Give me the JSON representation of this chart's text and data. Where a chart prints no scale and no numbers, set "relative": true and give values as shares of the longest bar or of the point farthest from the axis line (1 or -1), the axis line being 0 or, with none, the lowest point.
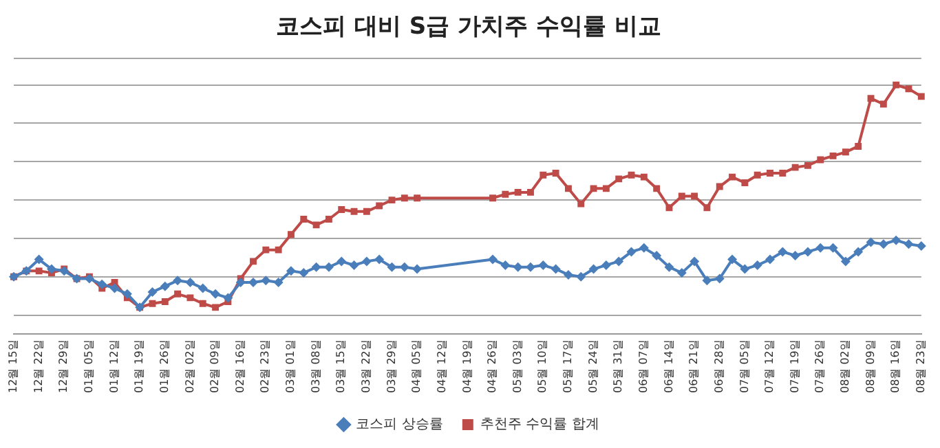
{
  "chart_data": {
    "type": "line",
    "title": "코스피 대비 S급 가치주 수익률 비교",
    "relative": true,
    "grid": "y",
    "legend": "bottom",
    "categories": [
      "12월 15일",
      null,
      "12월 22일",
      null,
      "12월 29일",
      null,
      "01월 05일",
      null,
      "01월 12일",
      null,
      "01월 19일",
      null,
      "01월 26일",
      null,
      "02월 02일",
      null,
      "02월 09일",
      null,
      "02월 16일",
      null,
      "02월 23일",
      null,
      "03월 01일",
      null,
      "03월 08일",
      null,
      "03월 15일",
      null,
      "03월 22일",
      null,
      "03월 29일",
      null,
      "04월 05일",
      null,
      "04월 12일",
      null,
      "04월 19일",
      null,
      "04월 26일",
      null,
      "05월 03일",
      null,
      "05월 10일",
      null,
      "05월 17일",
      null,
      "05월 24일",
      null,
      "05월 31일",
      null,
      "06월 07일",
      null,
      "06월 14일",
      null,
      "06월 21일",
      null,
      "06월 28일",
      null,
      "07월 05일",
      null,
      "07월 12일",
      null,
      "07월 19일",
      null,
      "07월 26일",
      null,
      "08월 02일",
      null,
      "08월 09일",
      null,
      "08월 16일",
      null,
      "08월 23일"
    ],
    "series": [
      {
        "name": "코스피 상승률",
        "color": "#4a7ebb",
        "marker": "diamond",
        "values": [
          0,
          0.03,
          0.09,
          0.04,
          0.03,
          -0.01,
          -0.01,
          -0.04,
          -0.06,
          -0.09,
          -0.16,
          -0.08,
          -0.05,
          -0.02,
          -0.03,
          -0.06,
          -0.09,
          -0.11,
          -0.03,
          -0.03,
          -0.02,
          -0.03,
          0.03,
          0.02,
          0.05,
          0.05,
          0.08,
          0.06,
          0.08,
          0.09,
          0.05,
          0.05,
          0.04,
          null,
          null,
          null,
          null,
          null,
          0.09,
          0.06,
          0.05,
          0.05,
          0.06,
          0.04,
          0.01,
          0,
          0.04,
          0.06,
          0.08,
          0.13,
          0.15,
          0.11,
          0.05,
          0.02,
          0.08,
          -0.02,
          -0.01,
          0.09,
          0.04,
          0.06,
          0.09,
          0.13,
          0.11,
          0.13,
          0.15,
          0.15,
          0.08,
          0.13,
          0.18,
          0.17,
          0.19,
          0.17,
          0.16
        ]
      },
      {
        "name": "추천주 수익률 합계",
        "color": "#be4b48",
        "marker": "square",
        "values": [
          0,
          0.03,
          0.03,
          0.02,
          0.04,
          -0.01,
          0,
          -0.06,
          -0.03,
          -0.11,
          -0.16,
          -0.14,
          -0.13,
          -0.09,
          -0.11,
          -0.14,
          -0.16,
          -0.13,
          -0.01,
          0.08,
          0.14,
          0.14,
          0.22,
          0.3,
          0.27,
          0.3,
          0.35,
          0.34,
          0.34,
          0.37,
          0.4,
          0.41,
          0.41,
          null,
          null,
          null,
          null,
          null,
          0.41,
          0.43,
          0.44,
          0.44,
          0.53,
          0.54,
          0.46,
          0.38,
          0.46,
          0.46,
          0.51,
          0.53,
          0.52,
          0.46,
          0.36,
          0.42,
          0.42,
          0.36,
          0.47,
          0.52,
          0.49,
          0.53,
          0.54,
          0.54,
          0.57,
          0.58,
          0.61,
          0.63,
          0.65,
          0.68,
          0.93,
          0.9,
          1,
          0.98,
          0.94
        ]
      }
    ]
  }
}
